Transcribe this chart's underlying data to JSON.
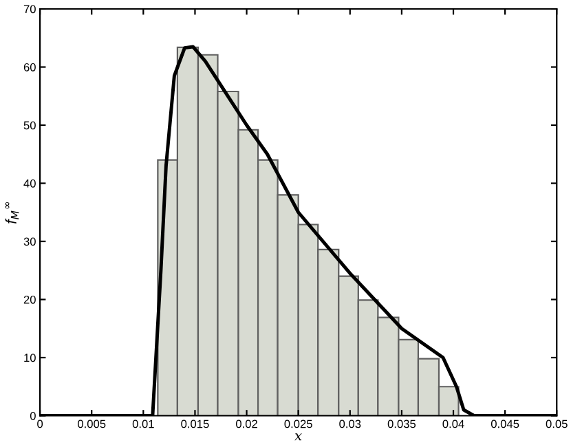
{
  "chart_data": {
    "type": "histogram",
    "xlabel": "x",
    "ylabel": "f$_{M}$$^{∞}$",
    "bins": [
      0.0114,
      0.0133,
      0.0153,
      0.0172,
      0.0192,
      0.0211,
      0.023,
      0.025,
      0.0269,
      0.0289,
      0.0308,
      0.0327,
      0.0347,
      0.0366,
      0.0386,
      0.0405
    ],
    "values": [
      44,
      63.4,
      62.1,
      55.8,
      49.2,
      44,
      38,
      32.9,
      28.6,
      24,
      19.9,
      16.9,
      13.1,
      9.8,
      5
    ],
    "color": "#d8dbd2",
    "series": [
      {
        "type": "line",
        "color": "#000000",
        "x": [
          0,
          0.0109,
          0.0117,
          0.0122,
          0.013,
          0.014,
          0.0148,
          0.016,
          0.018,
          0.02,
          0.022,
          0.025,
          0.03,
          0.035,
          0.039,
          0.0403,
          0.041,
          0.042,
          0.05
        ],
        "values": [
          0,
          0,
          25,
          43,
          58.5,
          63.3,
          63.5,
          61,
          55.5,
          50,
          45,
          35,
          24.5,
          15,
          10,
          5,
          1,
          0,
          0
        ]
      }
    ],
    "xlim": [
      0,
      0.05
    ],
    "ylim": [
      0,
      70
    ],
    "xticks": [
      0,
      0.005,
      0.01,
      0.015,
      0.02,
      0.025,
      0.03,
      0.035,
      0.04,
      0.045,
      0.05
    ],
    "yticks": [
      0,
      10,
      20,
      30,
      40,
      50,
      60,
      70
    ],
    "grid": false,
    "legend": false
  }
}
